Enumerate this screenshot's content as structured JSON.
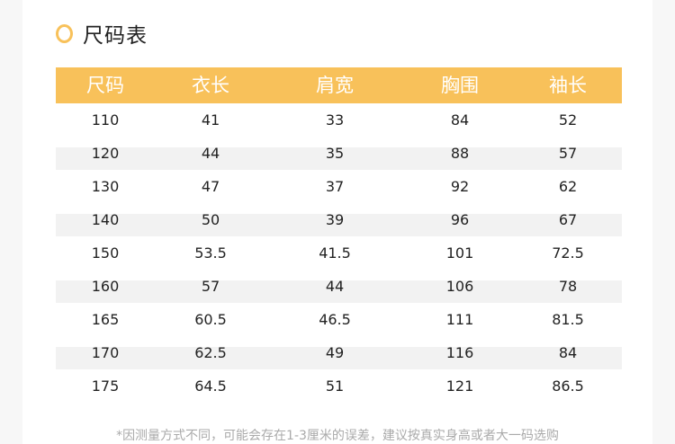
{
  "title": "尺码表",
  "colors": {
    "accent": "#f8c15a",
    "stripe": "#f2f2f2"
  },
  "headers": [
    "尺码",
    "衣长",
    "肩宽",
    "胸围",
    "袖长"
  ],
  "rows": [
    [
      "110",
      "41",
      "33",
      "84",
      "52"
    ],
    [
      "120",
      "44",
      "35",
      "88",
      "57"
    ],
    [
      "130",
      "47",
      "37",
      "92",
      "62"
    ],
    [
      "140",
      "50",
      "39",
      "96",
      "67"
    ],
    [
      "150",
      "53.5",
      "41.5",
      "101",
      "72.5"
    ],
    [
      "160",
      "57",
      "44",
      "106",
      "78"
    ],
    [
      "165",
      "60.5",
      "46.5",
      "111",
      "81.5"
    ],
    [
      "170",
      "62.5",
      "49",
      "116",
      "84"
    ],
    [
      "175",
      "64.5",
      "51",
      "121",
      "86.5"
    ]
  ],
  "note": "*因测量方式不同，可能会存在1-3厘米的误差，建议按真实身高或者大一码选购"
}
